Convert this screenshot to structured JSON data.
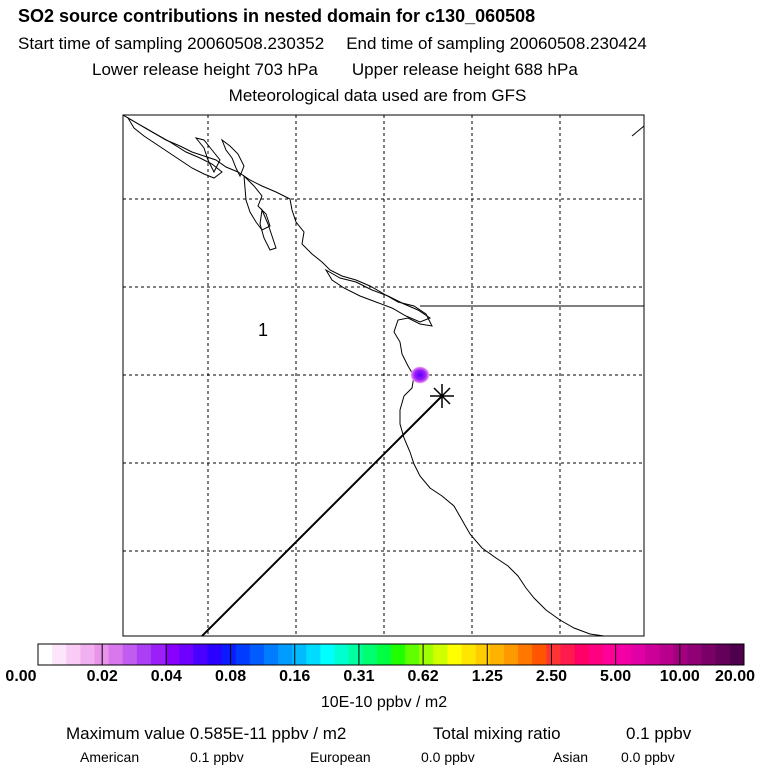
{
  "header": {
    "title": "SO2 source contributions in nested domain for c130_060508",
    "start_label": "Start time of sampling 20060508.230352",
    "end_label": "End time of sampling 20060508.230424",
    "lower_label": "Lower release height  703 hPa",
    "upper_label": "Upper release height  688 hPa",
    "met_label": "Meteorological data used are from GFS"
  },
  "map": {
    "region_label": "1",
    "source_marker": "asterisk-marker",
    "line_color": "#000000",
    "plume_color": "#7b00ff"
  },
  "colorbar": {
    "colors": [
      "#ffffff",
      "#fde6fb",
      "#f8ccf5",
      "#f1b0ef",
      "#ea93ea",
      "#d978ec",
      "#c15cf0",
      "#ac3ff3",
      "#9b1ff7",
      "#8a00ff",
      "#6e00ff",
      "#4a00ff",
      "#2a00ff",
      "#0a1cff",
      "#003cff",
      "#005cff",
      "#007cff",
      "#009cff",
      "#00bcff",
      "#00dcff",
      "#00ffff",
      "#00ffd0",
      "#00ffa0",
      "#00ff70",
      "#00ff40",
      "#20ff00",
      "#60ff00",
      "#a0ff00",
      "#d0ff00",
      "#ffff00",
      "#ffe600",
      "#ffcc00",
      "#ffb300",
      "#ff9900",
      "#ff7700",
      "#ff5500",
      "#ff3333",
      "#ff1a4d",
      "#ff0066",
      "#ff0080",
      "#ff0099",
      "#f200a6",
      "#e100a6",
      "#cc0099",
      "#b8008c",
      "#a30080",
      "#8e0073",
      "#790066",
      "#640059",
      "#4f004d"
    ],
    "labels": [
      "0.00",
      "0.02",
      "0.04",
      "0.08",
      "0.16",
      "0.31",
      "0.62",
      "1.25",
      "2.50",
      "5.00",
      "10.00",
      "20.00"
    ],
    "units": "10E-10 ppbv / m2"
  },
  "footer": {
    "max_label": "Maximum value  0.585E-11 ppbv / m2",
    "total_label": "Total mixing ratio",
    "total_value": "0.1 ppbv",
    "american_label": "American",
    "american_value": "0.1 ppbv",
    "european_label": "European",
    "european_value": "0.0 ppbv",
    "asian_label": "Asian",
    "asian_value": "0.0 ppbv"
  }
}
